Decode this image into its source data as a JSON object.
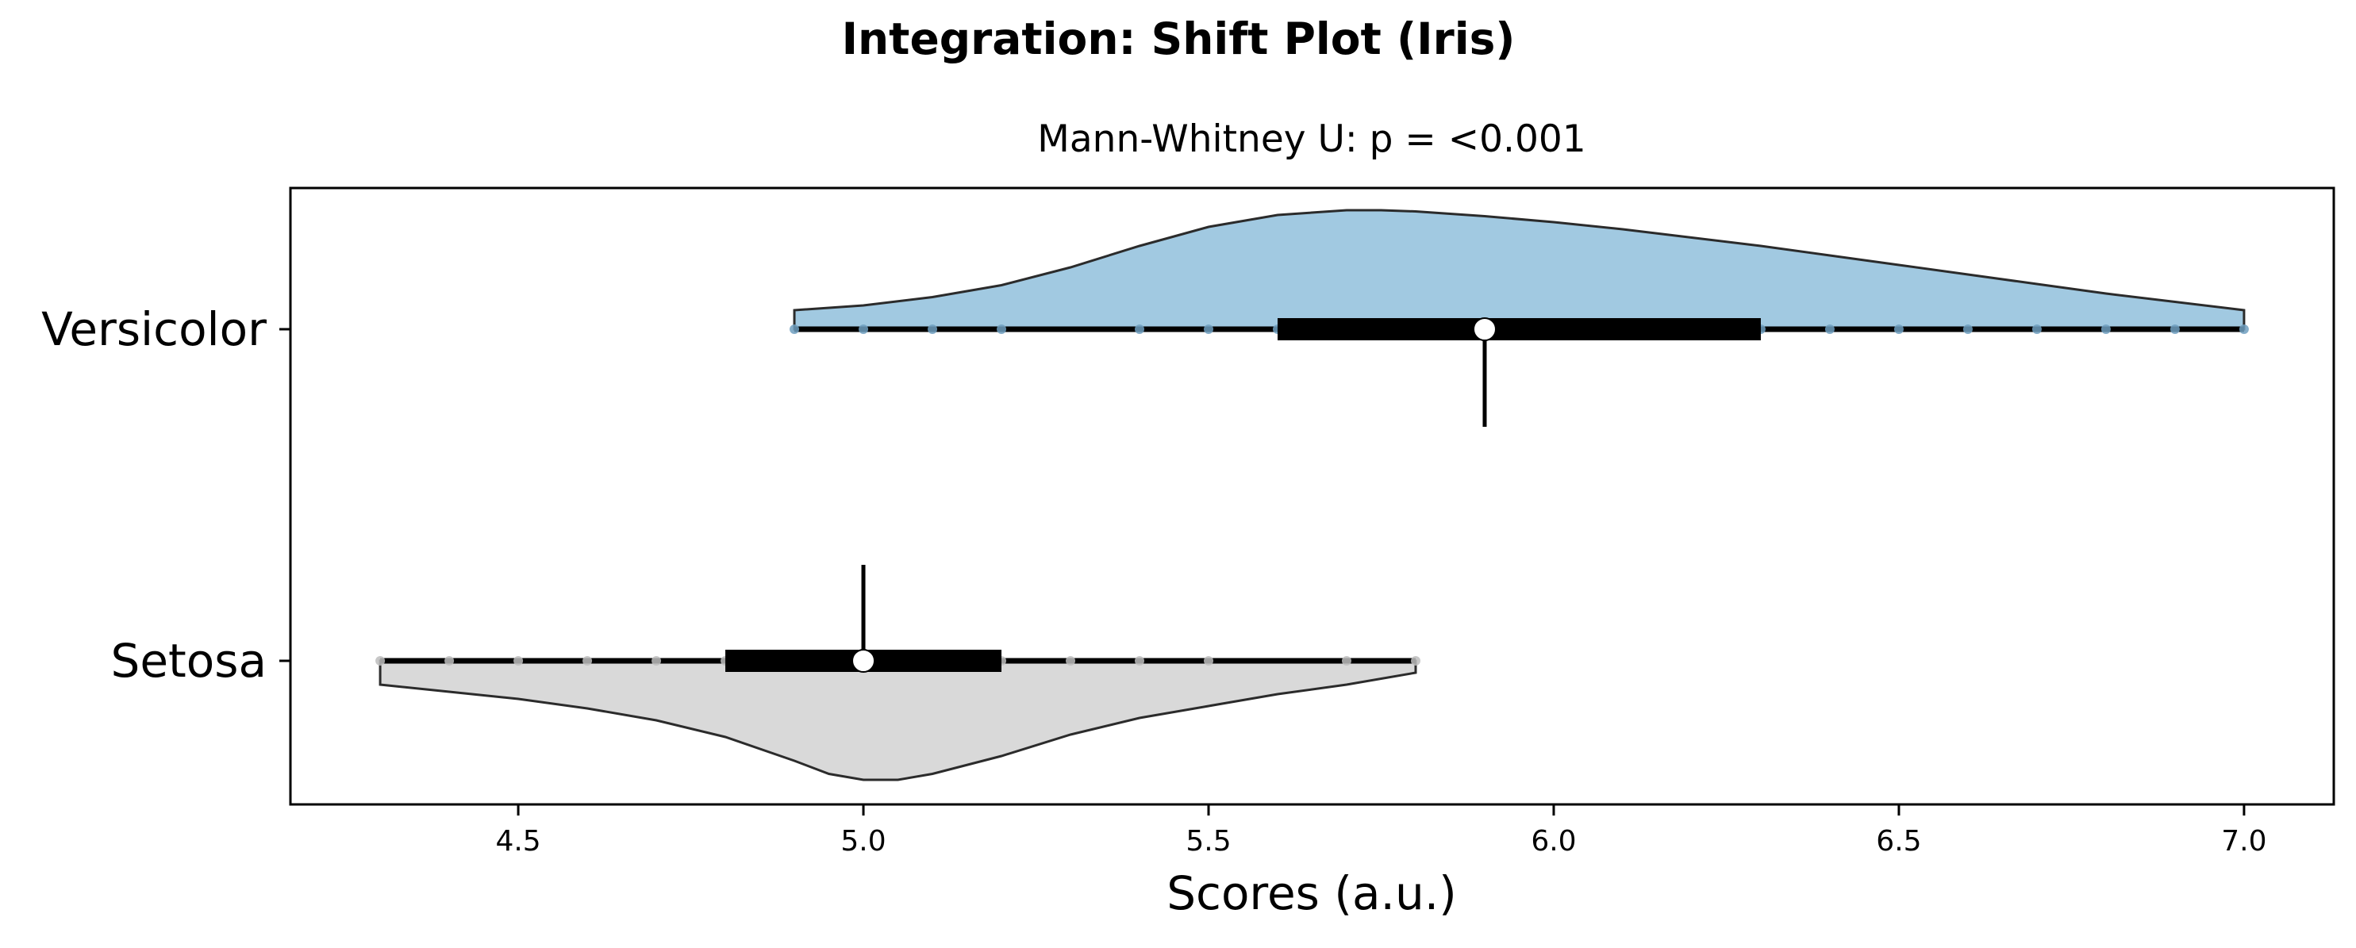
{
  "chart_data": {
    "type": "shift-plot",
    "title": "Integration: Shift Plot (Iris)",
    "subtitle": "Mann-Whitney U: p = <0.001",
    "xlabel": "Scores (a.u.)",
    "ylabel": "",
    "xlim": [
      4.17,
      7.13
    ],
    "xticks": [
      4.5,
      5.0,
      5.5,
      6.0,
      6.5,
      7.0
    ],
    "xtick_labels": [
      "4.5",
      "5.0",
      "5.5",
      "6.0",
      "6.5",
      "7.0"
    ],
    "grid": false,
    "groups": [
      {
        "name": "Versicolor",
        "color": "#a1c9e1",
        "point_color": "#6f9fc0",
        "density_side": "up",
        "range": [
          4.9,
          7.0
        ],
        "q1": 5.6,
        "median": 5.9,
        "q3": 6.3,
        "points": [
          4.9,
          5.0,
          5.1,
          5.2,
          5.4,
          5.5,
          5.6,
          5.7,
          5.8,
          5.9,
          6.0,
          6.1,
          6.2,
          6.3,
          6.4,
          6.5,
          6.6,
          6.7,
          6.8,
          6.9,
          7.0
        ],
        "density": {
          "x": [
            4.9,
            5.0,
            5.1,
            5.2,
            5.3,
            5.4,
            5.5,
            5.6,
            5.7,
            5.75,
            5.8,
            5.9,
            6.0,
            6.1,
            6.2,
            6.3,
            6.4,
            6.5,
            6.6,
            6.7,
            6.8,
            6.9,
            7.0
          ],
          "y": [
            0.16,
            0.2,
            0.27,
            0.37,
            0.52,
            0.7,
            0.86,
            0.96,
            1.0,
            1.0,
            0.99,
            0.95,
            0.9,
            0.84,
            0.77,
            0.7,
            0.62,
            0.54,
            0.46,
            0.38,
            0.3,
            0.23,
            0.16
          ]
        }
      },
      {
        "name": "Setosa",
        "color": "#d9d9d9",
        "point_color": "#bdbdbd",
        "density_side": "down",
        "range": [
          4.3,
          5.8
        ],
        "q1": 4.8,
        "median": 5.0,
        "q3": 5.2,
        "points": [
          4.3,
          4.4,
          4.5,
          4.6,
          4.7,
          4.8,
          4.9,
          5.0,
          5.1,
          5.2,
          5.3,
          5.4,
          5.5,
          5.7,
          5.8
        ],
        "density": {
          "x": [
            4.3,
            4.4,
            4.5,
            4.6,
            4.7,
            4.8,
            4.9,
            4.95,
            5.0,
            5.05,
            5.1,
            5.2,
            5.3,
            5.4,
            5.5,
            5.6,
            5.7,
            5.8
          ],
          "y": [
            0.2,
            0.26,
            0.32,
            0.4,
            0.5,
            0.64,
            0.84,
            0.95,
            1.0,
            1.0,
            0.95,
            0.8,
            0.62,
            0.48,
            0.38,
            0.28,
            0.2,
            0.1
          ]
        }
      }
    ],
    "median_connector": true
  }
}
